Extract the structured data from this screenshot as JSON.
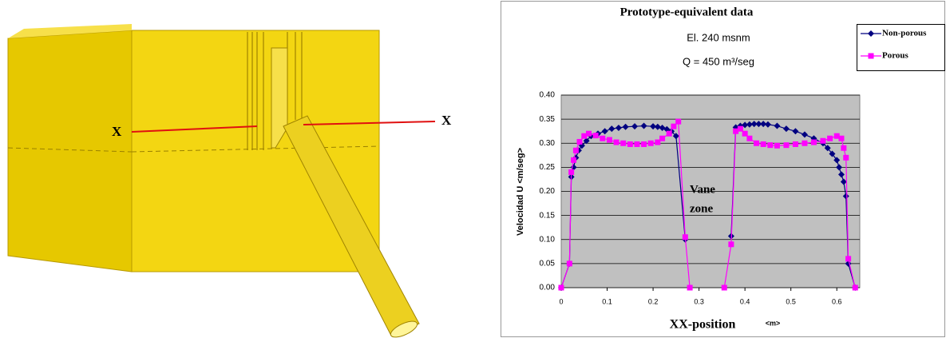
{
  "illustration": {
    "labels": [
      "X",
      "X"
    ]
  },
  "chart_data": {
    "type": "line",
    "title": "Prototype-equivalent data",
    "subtitle": "El. 240 msnm",
    "condition": "Q = 450 m³/seg",
    "x_label": "XX-position",
    "x_unit": "<m>",
    "y_label": "Velocidad U <m/seg>",
    "annotation_lines": [
      "Vane",
      "zone"
    ],
    "xlim": [
      0,
      0.65
    ],
    "xticks": [
      0,
      0.1,
      0.2,
      0.3,
      0.4,
      0.5,
      0.6
    ],
    "ylim": [
      0,
      0.4
    ],
    "yticks": [
      {
        "value": 0,
        "label": "0.00"
      },
      {
        "value": 0.05,
        "label": "0.05"
      },
      {
        "value": 0.1,
        "label": "0.10"
      },
      {
        "value": 0.15,
        "label": "0.15"
      },
      {
        "value": 0.2,
        "label": "0.20"
      },
      {
        "value": 0.25,
        "label": "0.25"
      },
      {
        "value": 0.3,
        "label": "0.30"
      },
      {
        "value": 0.35,
        "label": "0.35"
      },
      {
        "value": 0.4,
        "label": "0.40"
      }
    ],
    "grid": true,
    "legend": "top-right",
    "series": [
      {
        "name": "Non-porous",
        "color": "#000080",
        "marker": "diamond",
        "x": [
          0,
          0.018,
          0.022,
          0.027,
          0.032,
          0.038,
          0.045,
          0.055,
          0.065,
          0.08,
          0.095,
          0.11,
          0.125,
          0.14,
          0.16,
          0.18,
          0.2,
          0.21,
          0.22,
          0.23,
          0.24,
          0.25,
          0.27,
          null,
          0.37,
          0.38,
          0.39,
          0.4,
          0.41,
          0.42,
          0.43,
          0.44,
          0.45,
          0.47,
          0.49,
          0.51,
          0.53,
          0.55,
          0.57,
          0.58,
          0.59,
          0.6,
          0.605,
          0.61,
          0.615,
          0.62,
          0.625,
          0.64
        ],
        "values": [
          0,
          0.05,
          0.23,
          0.25,
          0.27,
          0.285,
          0.295,
          0.305,
          0.315,
          0.32,
          0.325,
          0.33,
          0.332,
          0.334,
          0.335,
          0.336,
          0.335,
          0.334,
          0.332,
          0.329,
          0.325,
          0.315,
          0.1,
          null,
          0.107,
          0.333,
          0.336,
          0.338,
          0.339,
          0.34,
          0.34,
          0.34,
          0.339,
          0.336,
          0.33,
          0.325,
          0.318,
          0.31,
          0.3,
          0.29,
          0.278,
          0.265,
          0.25,
          0.235,
          0.22,
          0.19,
          0.05,
          0
        ]
      },
      {
        "name": "Porous",
        "color": "#ff00ff",
        "marker": "square",
        "x": [
          0,
          0.018,
          0.022,
          0.027,
          0.032,
          0.04,
          0.05,
          0.06,
          0.075,
          0.09,
          0.105,
          0.12,
          0.135,
          0.15,
          0.165,
          0.18,
          0.195,
          0.21,
          0.22,
          0.235,
          0.245,
          0.255,
          0.27,
          0.28,
          null,
          0.355,
          0.37,
          0.38,
          0.39,
          0.4,
          0.41,
          0.425,
          0.44,
          0.455,
          0.47,
          0.49,
          0.51,
          0.53,
          0.55,
          0.57,
          0.585,
          0.6,
          0.61,
          0.615,
          0.62,
          0.625,
          0.64
        ],
        "values": [
          0,
          0.05,
          0.24,
          0.265,
          0.285,
          0.303,
          0.315,
          0.32,
          0.316,
          0.31,
          0.307,
          0.302,
          0.3,
          0.298,
          0.298,
          0.298,
          0.3,
          0.302,
          0.31,
          0.32,
          0.335,
          0.345,
          0.105,
          0,
          null,
          0,
          0.09,
          0.325,
          0.33,
          0.32,
          0.31,
          0.3,
          0.298,
          0.296,
          0.295,
          0.296,
          0.298,
          0.3,
          0.302,
          0.305,
          0.31,
          0.315,
          0.31,
          0.29,
          0.27,
          0.06,
          0
        ]
      }
    ]
  }
}
